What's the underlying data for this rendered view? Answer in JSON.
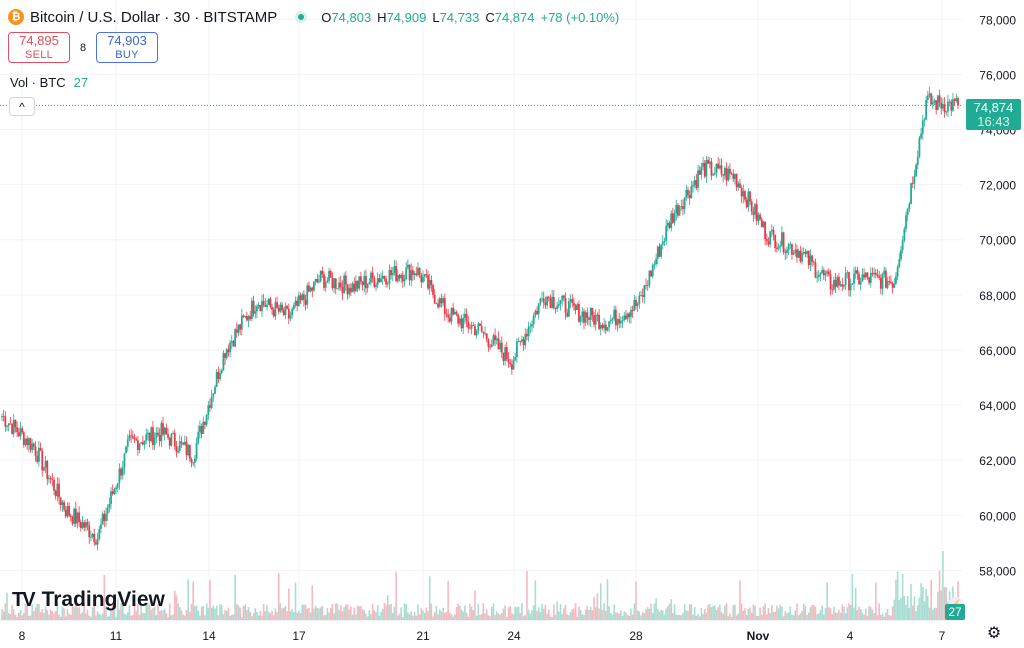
{
  "header": {
    "coin_icon_letter": "₿",
    "symbol_title": "Bitcoin / U.S. Dollar · 30 · BITSTAMP",
    "ohlc": [
      {
        "k": "O",
        "v": "74,803"
      },
      {
        "k": "H",
        "v": "74,909"
      },
      {
        "k": "L",
        "v": "74,733"
      },
      {
        "k": "C",
        "v": "74,874"
      },
      {
        "k": "",
        "v": "+78 (+0.10%)"
      }
    ]
  },
  "trade": {
    "sell_price": "74,895",
    "sell_label": "SELL",
    "spread": "8",
    "buy_price": "74,903",
    "buy_label": "BUY"
  },
  "volume_indicator": {
    "label": "Vol · BTC",
    "value": "27"
  },
  "collapse_icon": "^",
  "last_price": {
    "value": "74,874",
    "countdown": "16:43"
  },
  "logo": {
    "mark": "TV",
    "text": "TradingView"
  },
  "vol_badge": "27",
  "bolt_icon": "⚡",
  "settings_icon": "⚙",
  "colors": {
    "up": "#22ab94",
    "down": "#f23645",
    "grid": "#f0f3fa",
    "axis_text": "#131722"
  },
  "chart_data": {
    "type": "candlestick",
    "title": "",
    "price_axis": {
      "ticks": [
        58000,
        60000,
        62000,
        64000,
        66000,
        68000,
        70000,
        72000,
        74000,
        76000,
        78000
      ],
      "ylim": [
        56200,
        78700
      ]
    },
    "time_axis": {
      "labels": [
        "8",
        "11",
        "14",
        "17",
        "21",
        "24",
        "28",
        "Nov",
        "4",
        "7"
      ]
    },
    "grid": true,
    "series": [
      {
        "name": "BTCUSD",
        "points": [
          {
            "x": "8",
            "y": 63600
          },
          {
            "x": "9",
            "y": 62500
          },
          {
            "x": "10",
            "y": 60200
          },
          {
            "x": "11",
            "y": 59200
          },
          {
            "x": "12",
            "y": 62600
          },
          {
            "x": "13",
            "y": 63000
          },
          {
            "x": "14",
            "y": 62200
          },
          {
            "x": "15",
            "y": 66000
          },
          {
            "x": "16",
            "y": 67800
          },
          {
            "x": "17",
            "y": 67200
          },
          {
            "x": "18",
            "y": 68600
          },
          {
            "x": "19",
            "y": 68300
          },
          {
            "x": "20",
            "y": 68700
          },
          {
            "x": "21",
            "y": 68900
          },
          {
            "x": "22",
            "y": 67300
          },
          {
            "x": "23",
            "y": 66700
          },
          {
            "x": "24",
            "y": 65600
          },
          {
            "x": "25",
            "y": 68000
          },
          {
            "x": "26",
            "y": 67400
          },
          {
            "x": "27",
            "y": 67000
          },
          {
            "x": "28",
            "y": 67700
          },
          {
            "x": "29",
            "y": 70800
          },
          {
            "x": "30",
            "y": 72600
          },
          {
            "x": "31",
            "y": 72300
          },
          {
            "x": "Nov",
            "y": 70200
          },
          {
            "x": "2",
            "y": 69600
          },
          {
            "x": "3",
            "y": 68400
          },
          {
            "x": "4",
            "y": 68600
          },
          {
            "x": "5",
            "y": 68500
          },
          {
            "x": "6",
            "y": 75000
          },
          {
            "x": "7",
            "y": 74874
          }
        ]
      }
    ],
    "volume_label": "Vol · BTC"
  }
}
